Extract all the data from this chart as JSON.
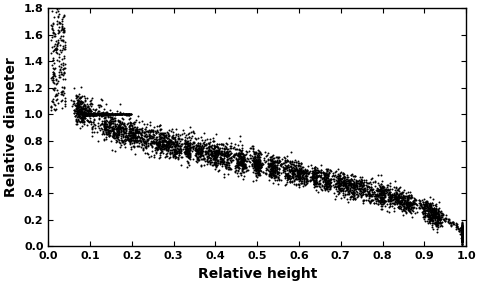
{
  "xlim": [
    0.0,
    1.0
  ],
  "ylim": [
    0.0,
    1.8
  ],
  "xticks": [
    0.0,
    0.1,
    0.2,
    0.3,
    0.4,
    0.5,
    0.6,
    0.7,
    0.8,
    0.9,
    1.0
  ],
  "yticks": [
    0.0,
    0.2,
    0.4,
    0.6,
    0.8,
    1.0,
    1.2,
    1.4,
    1.6,
    1.8
  ],
  "xlabel": "Relative height",
  "ylabel": "Relative diameter",
  "dot_color": "#000000",
  "dot_size": 2.0,
  "background_color": "#ffffff",
  "figsize": [
    4.8,
    2.85
  ],
  "dpi": 100
}
